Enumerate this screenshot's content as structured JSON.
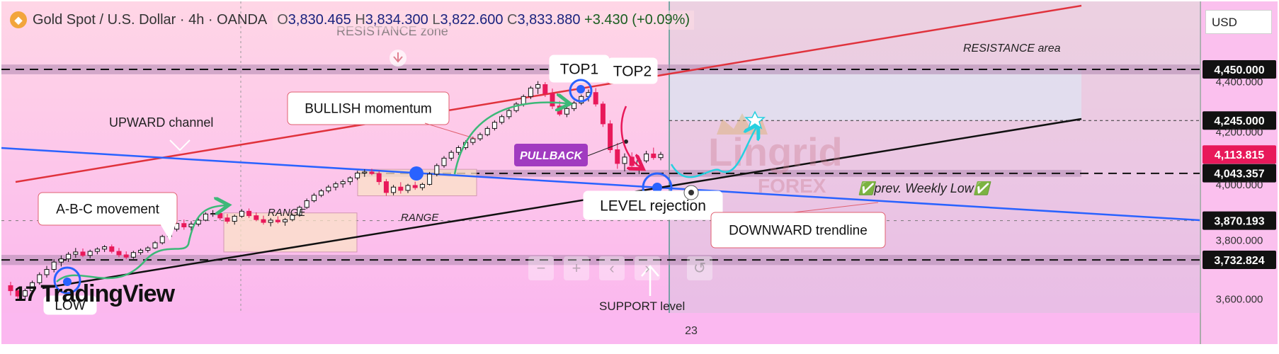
{
  "header": {
    "symbol_icon": "gold-coin-icon",
    "title": "Gold Spot / U.S. Dollar · 4h · OANDA",
    "open_label": "O",
    "open": "3,830.465",
    "high_label": "H",
    "high": "3,834.300",
    "low_label": "L",
    "low": "3,822.600",
    "close_label": "C",
    "close": "3,833.880",
    "change": "+3.430 (+0.09%)"
  },
  "currency": "USD",
  "logo": "TradingView",
  "nav_controls": [
    {
      "name": "zoom-out",
      "glyph": "−"
    },
    {
      "name": "zoom-in",
      "glyph": "+"
    },
    {
      "name": "scroll-left",
      "glyph": "‹"
    },
    {
      "name": "scroll-right",
      "glyph": "›"
    },
    {
      "name": "reset",
      "glyph": "↺"
    }
  ],
  "colors": {
    "resistance_band": "#b48cb4",
    "red_channel": "#e0323c",
    "blue_trend": "#2962ff",
    "black_support": "#111111",
    "arrow_green": "#3cb878",
    "arrow_cyan": "#26d0e0",
    "pullback_purple": "#a13bc0",
    "bull_candle": "#111111",
    "bear_candle": "#e8195a"
  },
  "chart_data": {
    "type": "candlestick",
    "instrument": "XAUUSD",
    "timeframe": "4h",
    "y_range": [
      3500,
      4720
    ],
    "y_scale": "log",
    "price_labels": [
      {
        "value": 4450,
        "text": "4,450.000",
        "style": "level"
      },
      {
        "value": 4400,
        "text": "4,400.000",
        "style": "tick"
      },
      {
        "value": 4245,
        "text": "4,245.000",
        "style": "level"
      },
      {
        "value": 4200,
        "text": "4,200.000",
        "style": "tick"
      },
      {
        "value": 4113.815,
        "text": "4,113.815",
        "style": "price"
      },
      {
        "value": 4043.357,
        "text": "4,043.357",
        "style": "level"
      },
      {
        "value": 4000,
        "text": "4,000.000",
        "style": "tick"
      },
      {
        "value": 3870.193,
        "text": "3,870.193",
        "style": "level"
      },
      {
        "value": 3800,
        "text": "3,800.000",
        "style": "tick"
      },
      {
        "value": 3732.824,
        "text": "3,732.824",
        "style": "level"
      },
      {
        "value": 3600,
        "text": "3,600.000",
        "style": "tick"
      }
    ],
    "x_labels": [
      {
        "text": "23"
      }
    ],
    "candles": [
      [
        3645,
        3658,
        3612,
        3628
      ],
      [
        3628,
        3640,
        3598,
        3610
      ],
      [
        3610,
        3635,
        3596,
        3628
      ],
      [
        3628,
        3662,
        3620,
        3655
      ],
      [
        3655,
        3690,
        3648,
        3682
      ],
      [
        3682,
        3712,
        3672,
        3700
      ],
      [
        3700,
        3735,
        3690,
        3725
      ],
      [
        3725,
        3748,
        3710,
        3736
      ],
      [
        3736,
        3760,
        3726,
        3752
      ],
      [
        3752,
        3774,
        3740,
        3760
      ],
      [
        3760,
        3772,
        3742,
        3748
      ],
      [
        3748,
        3768,
        3738,
        3762
      ],
      [
        3762,
        3776,
        3752,
        3770
      ],
      [
        3770,
        3784,
        3760,
        3778
      ],
      [
        3778,
        3786,
        3755,
        3762
      ],
      [
        3762,
        3774,
        3742,
        3750
      ],
      [
        3750,
        3762,
        3735,
        3742
      ],
      [
        3742,
        3764,
        3736,
        3758
      ],
      [
        3758,
        3772,
        3750,
        3766
      ],
      [
        3766,
        3780,
        3758,
        3774
      ],
      [
        3774,
        3798,
        3770,
        3792
      ],
      [
        3792,
        3820,
        3786,
        3814
      ],
      [
        3814,
        3846,
        3808,
        3840
      ],
      [
        3840,
        3868,
        3832,
        3860
      ],
      [
        3860,
        3874,
        3838,
        3848
      ],
      [
        3848,
        3868,
        3830,
        3858
      ],
      [
        3858,
        3880,
        3850,
        3872
      ],
      [
        3872,
        3900,
        3868,
        3894
      ],
      [
        3894,
        3908,
        3884,
        3896
      ],
      [
        3896,
        3904,
        3872,
        3880
      ],
      [
        3880,
        3894,
        3860,
        3868
      ],
      [
        3868,
        3892,
        3856,
        3886
      ],
      [
        3886,
        3912,
        3880,
        3904
      ],
      [
        3904,
        3914,
        3880,
        3888
      ],
      [
        3888,
        3900,
        3868,
        3874
      ],
      [
        3874,
        3888,
        3856,
        3864
      ],
      [
        3864,
        3880,
        3850,
        3872
      ],
      [
        3872,
        3886,
        3860,
        3866
      ],
      [
        3866,
        3880,
        3852,
        3874
      ],
      [
        3874,
        3896,
        3868,
        3890
      ],
      [
        3890,
        3924,
        3884,
        3918
      ],
      [
        3918,
        3950,
        3912,
        3942
      ],
      [
        3942,
        3970,
        3936,
        3962
      ],
      [
        3962,
        3985,
        3955,
        3978
      ],
      [
        3978,
        4000,
        3970,
        3992
      ],
      [
        3992,
        4012,
        3980,
        4004
      ],
      [
        4004,
        4020,
        3990,
        4012
      ],
      [
        4012,
        4032,
        4000,
        4026
      ],
      [
        4026,
        4052,
        4018,
        4044
      ],
      [
        4044,
        4058,
        4030,
        4048
      ],
      [
        4048,
        4060,
        4036,
        4042
      ],
      [
        4042,
        4052,
        4000,
        4012
      ],
      [
        4012,
        4022,
        3960,
        3972
      ],
      [
        3972,
        4000,
        3962,
        3992
      ],
      [
        3992,
        4010,
        3968,
        3980
      ],
      [
        3980,
        4004,
        3970,
        3998
      ],
      [
        3998,
        4012,
        3982,
        3990
      ],
      [
        3990,
        4008,
        3980,
        4002
      ],
      [
        4002,
        4048,
        3998,
        4040
      ],
      [
        4040,
        4080,
        4032,
        4072
      ],
      [
        4072,
        4108,
        4064,
        4100
      ],
      [
        4100,
        4130,
        4090,
        4122
      ],
      [
        4122,
        4148,
        4112,
        4140
      ],
      [
        4140,
        4168,
        4132,
        4160
      ],
      [
        4160,
        4182,
        4150,
        4174
      ],
      [
        4174,
        4198,
        4166,
        4190
      ],
      [
        4190,
        4222,
        4184,
        4214
      ],
      [
        4214,
        4246,
        4206,
        4238
      ],
      [
        4238,
        4268,
        4230,
        4260
      ],
      [
        4260,
        4292,
        4250,
        4284
      ],
      [
        4284,
        4318,
        4276,
        4310
      ],
      [
        4310,
        4348,
        4300,
        4340
      ],
      [
        4340,
        4382,
        4330,
        4374
      ],
      [
        4374,
        4402,
        4350,
        4388
      ],
      [
        4388,
        4398,
        4338,
        4352
      ],
      [
        4352,
        4372,
        4290,
        4302
      ],
      [
        4302,
        4322,
        4262,
        4270
      ],
      [
        4270,
        4300,
        4258,
        4292
      ],
      [
        4292,
        4322,
        4282,
        4314
      ],
      [
        4314,
        4348,
        4306,
        4340
      ],
      [
        4340,
        4368,
        4320,
        4356
      ],
      [
        4356,
        4374,
        4300,
        4310
      ],
      [
        4310,
        4320,
        4220,
        4232
      ],
      [
        4232,
        4246,
        4120,
        4132
      ],
      [
        4132,
        4158,
        4060,
        4080
      ],
      [
        4080,
        4118,
        4050,
        4104
      ],
      [
        4104,
        4122,
        4060,
        4072
      ],
      [
        4072,
        4098,
        4040,
        4090
      ],
      [
        4090,
        4128,
        4082,
        4116
      ],
      [
        4116,
        4140,
        4094,
        4102
      ],
      [
        4102,
        4124,
        4092,
        4114
      ]
    ],
    "lines": [
      {
        "name": "red-upper-channel",
        "points": [
          [
            null,
            "left"
          ],
          [
            4450,
            "after"
          ]
        ]
      },
      {
        "name": "blue-downward-trendline"
      },
      {
        "name": "black-support-trendline"
      }
    ],
    "zones": [
      {
        "name": "resistance-zone",
        "from": 4430,
        "to": 4470
      },
      {
        "name": "support-zone",
        "from": 3715,
        "to": 3750
      },
      {
        "name": "prev-weekly-low-zone",
        "from": 4030,
        "to": 4056
      }
    ],
    "annotations": [
      {
        "text": "RESISTANCE zone"
      },
      {
        "text": "RESISTANCE area"
      },
      {
        "text": "TOP1"
      },
      {
        "text": "TOP2"
      },
      {
        "text": "BULLISH momentum"
      },
      {
        "text": "UPWARD channel"
      },
      {
        "text": "PULLBACK"
      },
      {
        "text": "A-B-C movement"
      },
      {
        "text": "RANGE"
      },
      {
        "text": "RANGE"
      },
      {
        "text": "LEVEL rejection"
      },
      {
        "text": "✅prev. Weekly Low✅"
      },
      {
        "text": "DOWNWARD trendline"
      },
      {
        "text": "SUPPORT level"
      },
      {
        "text": "LOW"
      }
    ],
    "watermark": {
      "line1": "Lingrid",
      "line2": "FOREX"
    },
    "grid": false,
    "legend": "none"
  }
}
